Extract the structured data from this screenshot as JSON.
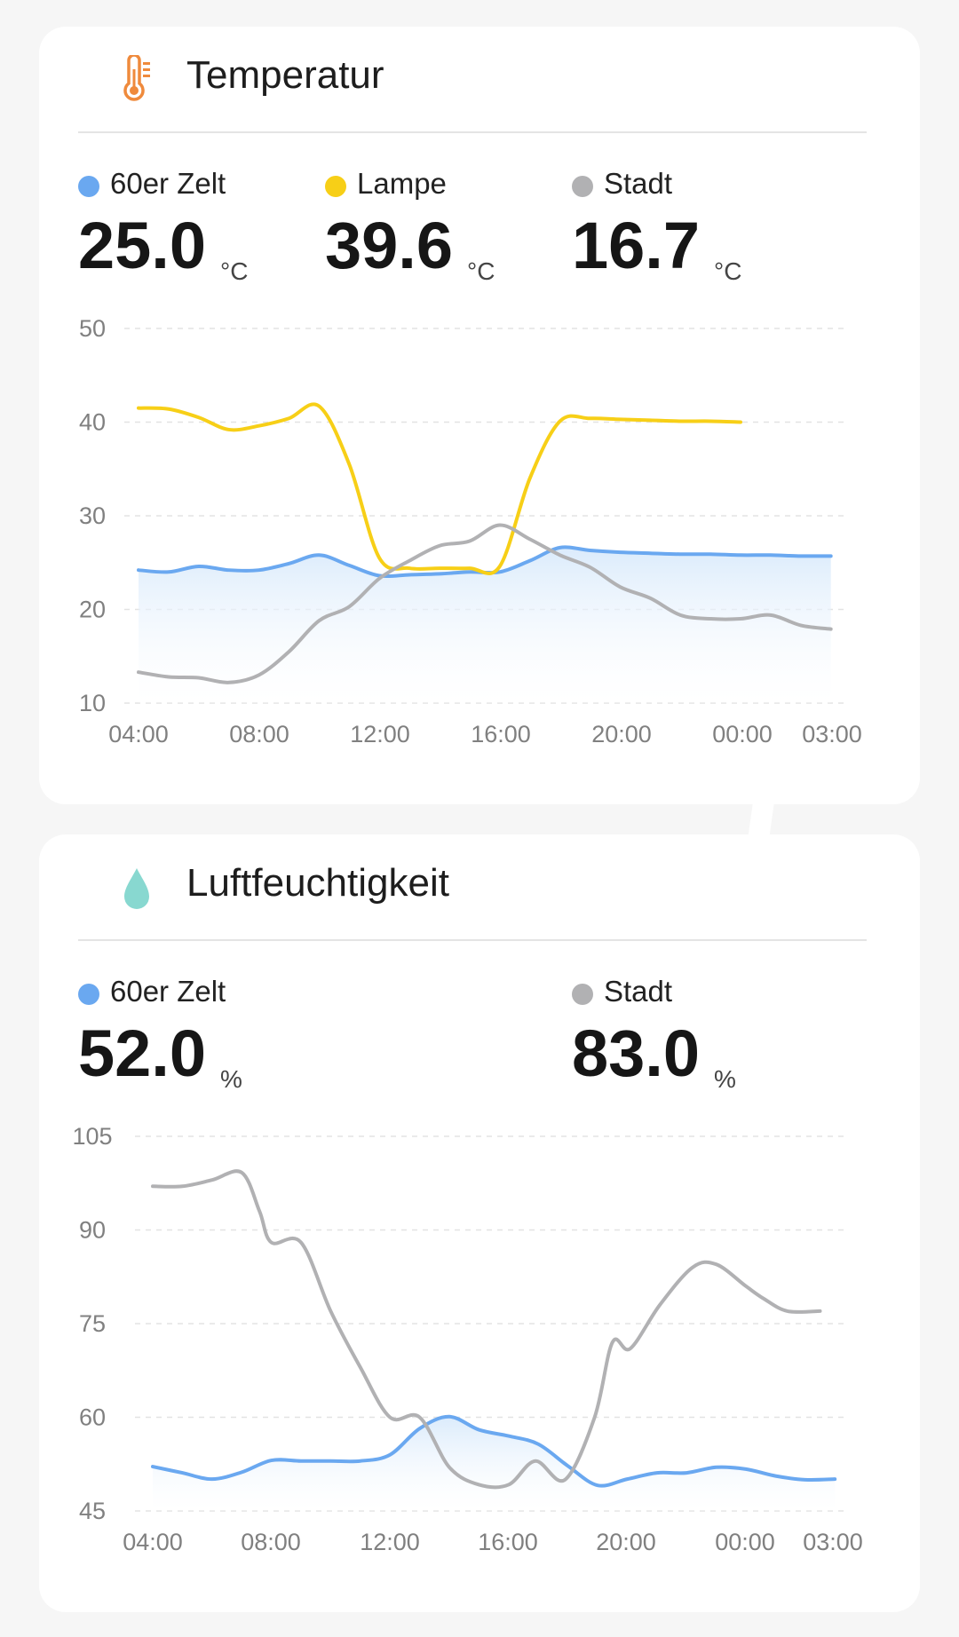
{
  "temperature": {
    "title": "Temperatur",
    "icon": "thermometer-icon",
    "readings": [
      {
        "label": "60er Zelt",
        "value": "25.0",
        "unit": "°C",
        "color": "#6aa8f0"
      },
      {
        "label": "Lampe",
        "value": "39.6",
        "unit": "°C",
        "color": "#f7cf17"
      },
      {
        "label": "Stadt",
        "value": "16.7",
        "unit": "°C",
        "color": "#b1b1b3"
      }
    ],
    "chart_data": {
      "type": "line",
      "y_ticks": [
        "50",
        "40",
        "30",
        "20",
        "10"
      ],
      "x_ticks": [
        "04:00",
        "08:00",
        "12:00",
        "16:00",
        "20:00",
        "00:00",
        "03:00"
      ],
      "ylim": [
        10,
        50
      ],
      "x_unit": "hours since 04:00",
      "series": [
        {
          "name": "60er Zelt",
          "color": "#6aa8f0",
          "fill": true,
          "points": [
            [
              0,
              24.2
            ],
            [
              1,
              24.0
            ],
            [
              2,
              24.6
            ],
            [
              3,
              24.2
            ],
            [
              4,
              24.2
            ],
            [
              5,
              24.9
            ],
            [
              6,
              25.8
            ],
            [
              7,
              24.7
            ],
            [
              8,
              23.6
            ],
            [
              9,
              23.7
            ],
            [
              10,
              23.8
            ],
            [
              11,
              24.0
            ],
            [
              12,
              24.0
            ],
            [
              13,
              25.2
            ],
            [
              14,
              26.6
            ],
            [
              15,
              26.3
            ],
            [
              16,
              26.1
            ],
            [
              17,
              26.0
            ],
            [
              18,
              25.9
            ],
            [
              19,
              25.9
            ],
            [
              20,
              25.8
            ],
            [
              21,
              25.8
            ],
            [
              22,
              25.7
            ],
            [
              23,
              25.7
            ]
          ]
        },
        {
          "name": "Lampe",
          "color": "#f7cf17",
          "fill": false,
          "points": [
            [
              0,
              41.5
            ],
            [
              1,
              41.4
            ],
            [
              2,
              40.5
            ],
            [
              3,
              39.2
            ],
            [
              4,
              39.6
            ],
            [
              5,
              40.4
            ],
            [
              6,
              41.7
            ],
            [
              7,
              35.5
            ],
            [
              8,
              25.5
            ],
            [
              9,
              24.4
            ],
            [
              10,
              24.4
            ],
            [
              11,
              24.4
            ],
            [
              12,
              24.6
            ],
            [
              13,
              34.0
            ],
            [
              14,
              40.1
            ],
            [
              15,
              40.4
            ],
            [
              16,
              40.3
            ],
            [
              17,
              40.2
            ],
            [
              18,
              40.1
            ],
            [
              19,
              40.1
            ],
            [
              20,
              40.0
            ]
          ]
        },
        {
          "name": "Stadt",
          "color": "#b1b1b3",
          "fill": false,
          "points": [
            [
              0,
              13.3
            ],
            [
              1,
              12.8
            ],
            [
              2,
              12.7
            ],
            [
              3,
              12.2
            ],
            [
              4,
              13.0
            ],
            [
              5,
              15.5
            ],
            [
              6,
              18.8
            ],
            [
              7,
              20.3
            ],
            [
              8,
              23.3
            ],
            [
              9,
              25.2
            ],
            [
              10,
              26.8
            ],
            [
              11,
              27.3
            ],
            [
              12,
              29.0
            ],
            [
              13,
              27.5
            ],
            [
              14,
              25.8
            ],
            [
              15,
              24.5
            ],
            [
              16,
              22.4
            ],
            [
              17,
              21.2
            ],
            [
              18,
              19.4
            ],
            [
              19,
              19.0
            ],
            [
              20,
              19.0
            ],
            [
              21,
              19.4
            ],
            [
              22,
              18.3
            ],
            [
              23,
              17.9
            ]
          ]
        }
      ]
    }
  },
  "humidity": {
    "title": "Luftfeuchtigkeit",
    "icon": "water-drop-icon",
    "readings": [
      {
        "label": "60er Zelt",
        "value": "52.0",
        "unit": "%",
        "color": "#6aa8f0"
      },
      {
        "label": "Stadt",
        "value": "83.0",
        "unit": "%",
        "color": "#b1b1b3"
      }
    ],
    "chart_data": {
      "type": "line",
      "y_ticks": [
        "105",
        "90",
        "75",
        "60",
        "45"
      ],
      "x_ticks": [
        "04:00",
        "08:00",
        "12:00",
        "16:00",
        "20:00",
        "00:00",
        "03:00"
      ],
      "ylim": [
        45,
        105
      ],
      "x_unit": "hours since 04:00",
      "series": [
        {
          "name": "60er Zelt",
          "color": "#6aa8f0",
          "fill": true,
          "points": [
            [
              0,
              52.1
            ],
            [
              1,
              51.1
            ],
            [
              2,
              50.1
            ],
            [
              3,
              51.2
            ],
            [
              4,
              53.1
            ],
            [
              5,
              53.0
            ],
            [
              6,
              53.0
            ],
            [
              7,
              53.0
            ],
            [
              8,
              54.0
            ],
            [
              9,
              58.2
            ],
            [
              10,
              60.1
            ],
            [
              11,
              58.0
            ],
            [
              12,
              57.0
            ],
            [
              13,
              55.7
            ],
            [
              14,
              52.2
            ],
            [
              15,
              49.1
            ],
            [
              16,
              50.1
            ],
            [
              17,
              51.1
            ],
            [
              18,
              51.1
            ],
            [
              19,
              52.0
            ],
            [
              20,
              51.7
            ],
            [
              21,
              50.6
            ],
            [
              22,
              50.0
            ],
            [
              23,
              50.1
            ]
          ]
        },
        {
          "name": "Stadt",
          "color": "#b1b1b3",
          "fill": false,
          "points": [
            [
              0,
              97.0
            ],
            [
              1,
              97.0
            ],
            [
              2,
              98.0
            ],
            [
              3,
              99.2
            ],
            [
              3.6,
              93.0
            ],
            [
              4,
              88.0
            ],
            [
              5,
              88.0
            ],
            [
              6,
              77.0
            ],
            [
              7,
              68.0
            ],
            [
              8,
              60.0
            ],
            [
              9,
              60.0
            ],
            [
              10,
              52.0
            ],
            [
              11,
              49.2
            ],
            [
              12,
              49.2
            ],
            [
              12.9,
              53.0
            ],
            [
              13.9,
              50.0
            ],
            [
              14.9,
              60.0
            ],
            [
              15.5,
              72.0
            ],
            [
              16.1,
              71.0
            ],
            [
              17.1,
              78.0
            ],
            [
              18.2,
              84.0
            ],
            [
              19,
              84.5
            ],
            [
              20,
              81.0
            ],
            [
              20.6,
              79.0
            ],
            [
              21.4,
              77.0
            ],
            [
              22.5,
              77.0
            ]
          ]
        }
      ]
    }
  }
}
